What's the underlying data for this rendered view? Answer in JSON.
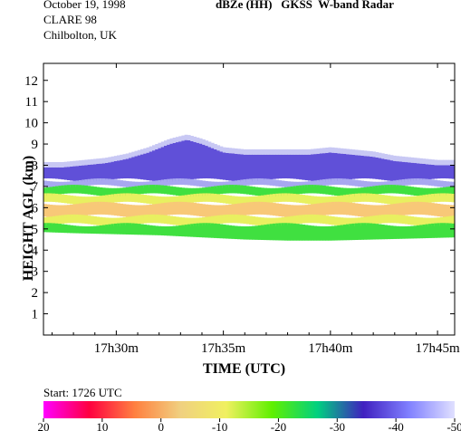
{
  "header": {
    "date": "October 19, 1998",
    "campaign": "CLARE 98",
    "site": "Chilbolton, UK",
    "title": "dBZe (HH)   GKSS  W-band Radar"
  },
  "footer": {
    "start": "Start: 1726 UTC"
  },
  "chart_data": {
    "type": "heatmap",
    "title": "dBZe (HH)   GKSS  W-band Radar",
    "xlabel": "TIME (UTC)",
    "ylabel": "HEIGHT AGL (km)",
    "x_ticks": [
      "17h30m",
      "17h35m",
      "17h40m",
      "17h45m"
    ],
    "x_tick_minutes": [
      30,
      35,
      40,
      45
    ],
    "xlim_minutes": [
      26.6,
      45.8
    ],
    "y_ticks": [
      1,
      2,
      3,
      4,
      5,
      6,
      7,
      8,
      9,
      10,
      11,
      12
    ],
    "ylim": [
      0,
      12.8
    ],
    "cloud_top_km": [
      [
        26.6,
        7.9
      ],
      [
        27.5,
        7.9
      ],
      [
        28.5,
        8.0
      ],
      [
        29.5,
        8.1
      ],
      [
        30.5,
        8.3
      ],
      [
        31.5,
        8.6
      ],
      [
        32.5,
        9.0
      ],
      [
        33.3,
        9.2
      ],
      [
        34.0,
        9.0
      ],
      [
        35.0,
        8.6
      ],
      [
        36.0,
        8.5
      ],
      [
        37.0,
        8.5
      ],
      [
        38.0,
        8.5
      ],
      [
        39.0,
        8.5
      ],
      [
        40.0,
        8.6
      ],
      [
        41.0,
        8.5
      ],
      [
        42.0,
        8.4
      ],
      [
        43.0,
        8.2
      ],
      [
        44.0,
        8.1
      ],
      [
        45.0,
        8.0
      ],
      [
        45.8,
        8.0
      ]
    ],
    "cloud_base_km": [
      [
        26.6,
        4.85
      ],
      [
        28.0,
        4.8
      ],
      [
        30.0,
        4.75
      ],
      [
        32.0,
        4.7
      ],
      [
        34.0,
        4.6
      ],
      [
        36.0,
        4.5
      ],
      [
        38.0,
        4.45
      ],
      [
        40.0,
        4.45
      ],
      [
        42.0,
        4.5
      ],
      [
        44.0,
        4.55
      ],
      [
        45.8,
        4.6
      ]
    ],
    "layers": [
      {
        "from_km": "top",
        "to_km": 7.3,
        "dBZ": -40
      },
      {
        "from_km": 7.3,
        "to_km": 7.0,
        "dBZ": -45
      },
      {
        "from_km": 7.0,
        "to_km": 6.6,
        "dBZ": -30
      },
      {
        "from_km": 6.6,
        "to_km": 6.2,
        "dBZ": -20
      },
      {
        "from_km": 6.2,
        "to_km": 5.6,
        "dBZ": -10
      },
      {
        "from_km": 5.6,
        "to_km": 5.2,
        "dBZ": -20
      },
      {
        "from_km": 5.2,
        "to_km": "base",
        "dBZ": -30
      }
    ],
    "colorbar": {
      "ticks": [
        "20",
        "10",
        "0",
        "-10",
        "-20",
        "-30",
        "-40",
        "-50"
      ],
      "range": [
        20,
        -50
      ],
      "colors": [
        "#ff00ff",
        "#ff0040",
        "#ff8040",
        "#f0d080",
        "#f0f060",
        "#60f000",
        "#00d080",
        "#4020c0",
        "#8080ff",
        "#e0e0ff"
      ]
    }
  }
}
